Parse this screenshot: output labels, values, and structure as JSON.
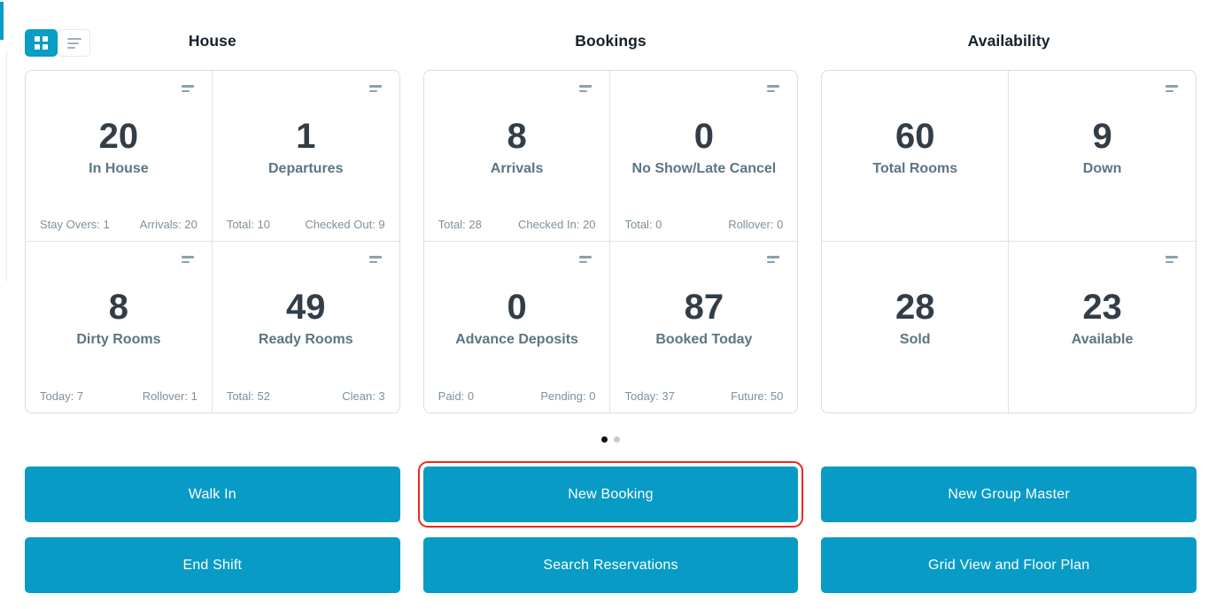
{
  "view_toggle": {
    "grid_icon": "grid-view-icon",
    "list_icon": "list-view-icon",
    "selected": "grid"
  },
  "columns": [
    {
      "title": "House",
      "cards": [
        {
          "value": "20",
          "label": "In House",
          "footer_left": "Stay Overs: 1",
          "footer_right": "Arrivals: 20",
          "menu": true
        },
        {
          "value": "1",
          "label": "Departures",
          "footer_left": "Total: 10",
          "footer_right": "Checked Out: 9",
          "menu": true
        },
        {
          "value": "8",
          "label": "Dirty Rooms",
          "footer_left": "Today: 7",
          "footer_right": "Rollover: 1",
          "menu": true
        },
        {
          "value": "49",
          "label": "Ready Rooms",
          "footer_left": "Total: 52",
          "footer_right": "Clean: 3",
          "menu": true
        }
      ]
    },
    {
      "title": "Bookings",
      "cards": [
        {
          "value": "8",
          "label": "Arrivals",
          "footer_left": "Total: 28",
          "footer_right": "Checked In: 20",
          "menu": true
        },
        {
          "value": "0",
          "label": "No Show/Late Cancel",
          "footer_left": "Total: 0",
          "footer_right": "Rollover: 0",
          "menu": true
        },
        {
          "value": "0",
          "label": "Advance Deposits",
          "footer_left": "Paid: 0",
          "footer_right": "Pending: 0",
          "menu": true
        },
        {
          "value": "87",
          "label": "Booked Today",
          "footer_left": "Today: 37",
          "footer_right": "Future: 50",
          "menu": true
        }
      ]
    },
    {
      "title": "Availability",
      "cards": [
        {
          "value": "60",
          "label": "Total Rooms",
          "menu": false
        },
        {
          "value": "9",
          "label": "Down",
          "menu": true
        },
        {
          "value": "28",
          "label": "Sold",
          "menu": false
        },
        {
          "value": "23",
          "label": "Available",
          "menu": true
        }
      ]
    }
  ],
  "carousel": {
    "dot_count": 2,
    "active_index": 0
  },
  "actions": [
    {
      "label": "Walk In",
      "highlighted": false
    },
    {
      "label": "New Booking",
      "highlighted": true
    },
    {
      "label": "New Group Master",
      "highlighted": false
    },
    {
      "label": "End Shift",
      "highlighted": false
    },
    {
      "label": "Search Reservations",
      "highlighted": false
    },
    {
      "label": "Grid View and Floor Plan",
      "highlighted": false
    }
  ],
  "icons": {
    "card_menu": "card-menu-icon"
  },
  "colors": {
    "accent_blue": "#089bc5",
    "toggle_blue": "#0a9dc6",
    "highlight_red": "#f2281c",
    "stat_value": "#323d48",
    "stat_label": "#5b7584",
    "footer_text": "#7d909c",
    "panel_border": "#d8dee2"
  }
}
